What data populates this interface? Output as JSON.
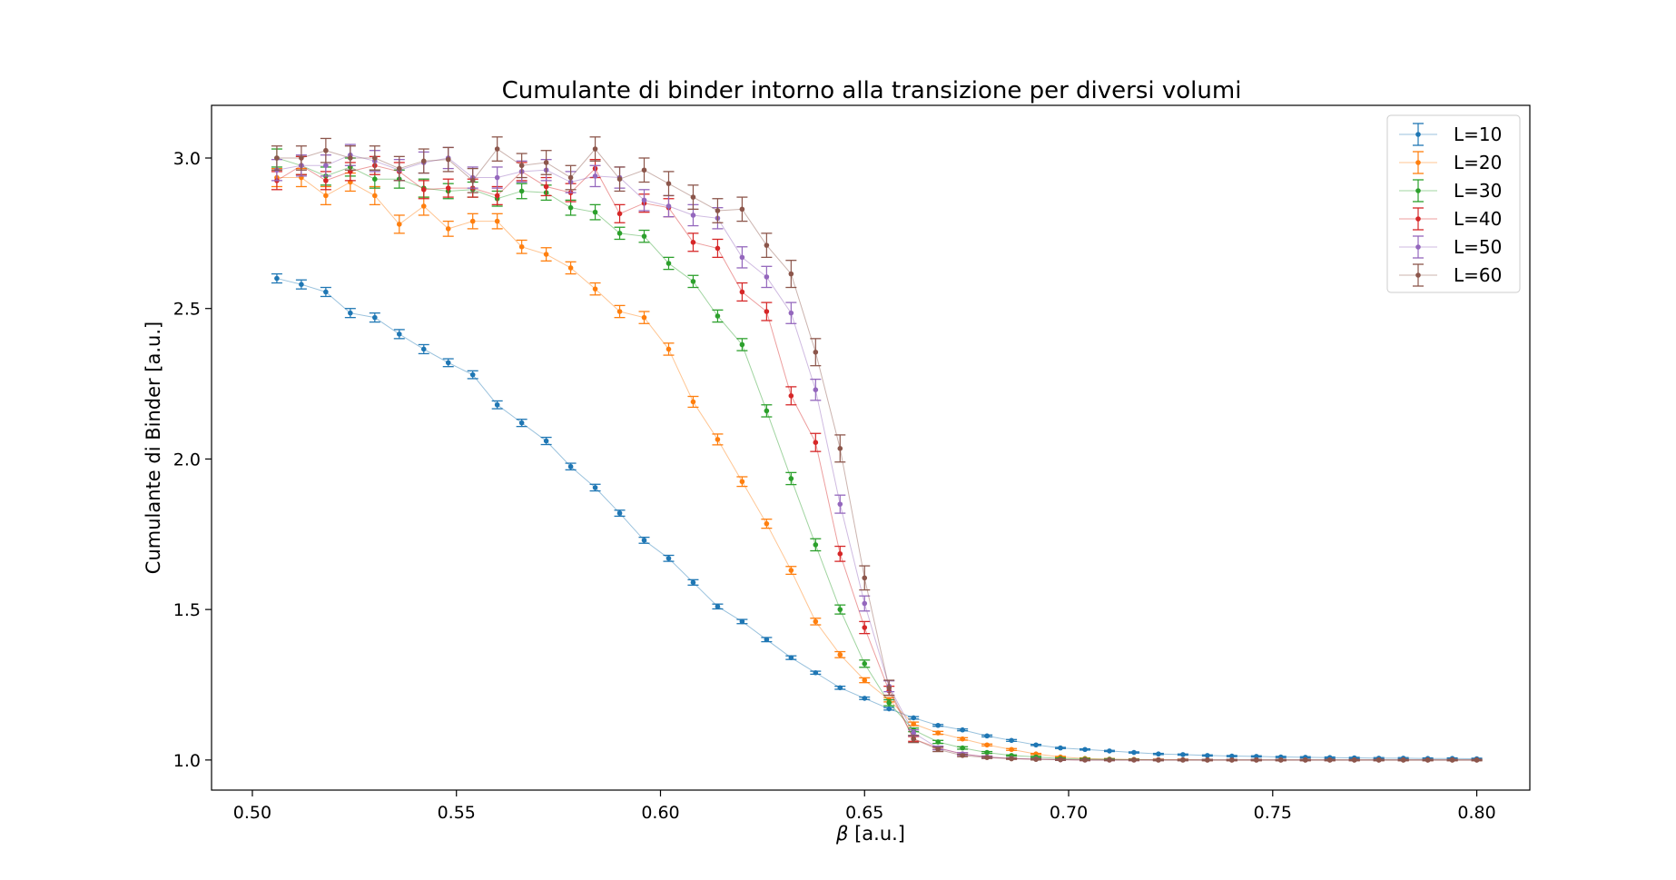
{
  "chart_data": {
    "type": "line",
    "title": "Cumulante di binder intorno alla transizione per diversi volumi",
    "xlabel_symbol": "β",
    "xlabel_unit": " [a.u.]",
    "ylabel": "Cumulante di Binder [a.u.]",
    "xlim": [
      0.49,
      0.813
    ],
    "ylim": [
      0.9,
      3.175
    ],
    "xticks": [
      0.5,
      0.55,
      0.6,
      0.65,
      0.7,
      0.75,
      0.8
    ],
    "xtick_labels": [
      "0.50",
      "0.55",
      "0.60",
      "0.65",
      "0.70",
      "0.75",
      "0.80"
    ],
    "yticks": [
      1.0,
      1.5,
      2.0,
      2.5,
      3.0
    ],
    "ytick_labels": [
      "1.0",
      "1.5",
      "2.0",
      "2.5",
      "3.0"
    ],
    "x": [
      0.506,
      0.512,
      0.518,
      0.524,
      0.53,
      0.536,
      0.542,
      0.548,
      0.554,
      0.56,
      0.566,
      0.572,
      0.578,
      0.584,
      0.59,
      0.596,
      0.602,
      0.608,
      0.614,
      0.62,
      0.626,
      0.632,
      0.638,
      0.644,
      0.65,
      0.656,
      0.662,
      0.668,
      0.674,
      0.68,
      0.686,
      0.692,
      0.698,
      0.704,
      0.71,
      0.716,
      0.722,
      0.728,
      0.734,
      0.74,
      0.746,
      0.752,
      0.758,
      0.764,
      0.77,
      0.776,
      0.782,
      0.788,
      0.794,
      0.8
    ],
    "legend_position": "top-right",
    "series": [
      {
        "name": "L=10",
        "color": "#1f77b4",
        "values": [
          2.6,
          2.58,
          2.555,
          2.485,
          2.47,
          2.415,
          2.365,
          2.32,
          2.28,
          2.18,
          2.12,
          2.06,
          1.975,
          1.905,
          1.82,
          1.73,
          1.67,
          1.59,
          1.51,
          1.46,
          1.4,
          1.34,
          1.29,
          1.24,
          1.205,
          1.17,
          1.14,
          1.115,
          1.1,
          1.08,
          1.065,
          1.05,
          1.04,
          1.035,
          1.03,
          1.025,
          1.02,
          1.018,
          1.015,
          1.013,
          1.012,
          1.01,
          1.009,
          1.008,
          1.007,
          1.006,
          1.006,
          1.005,
          1.005,
          1.004
        ],
        "errors": [
          0.015,
          0.015,
          0.015,
          0.015,
          0.015,
          0.015,
          0.015,
          0.013,
          0.013,
          0.013,
          0.012,
          0.012,
          0.011,
          0.011,
          0.01,
          0.01,
          0.01,
          0.009,
          0.008,
          0.007,
          0.007,
          0.006,
          0.005,
          0.005,
          0.004,
          0.004,
          0.004,
          0.003,
          0.003,
          0.003,
          0.003,
          0.002,
          0.002,
          0.002,
          0.002,
          0.002,
          0.002,
          0.002,
          0.002,
          0.002,
          0.002,
          0.002,
          0.002,
          0.002,
          0.002,
          0.002,
          0.002,
          0.002,
          0.002,
          0.002
        ]
      },
      {
        "name": "L=20",
        "color": "#ff7f0e",
        "values": [
          2.935,
          2.935,
          2.875,
          2.92,
          2.875,
          2.78,
          2.84,
          2.765,
          2.79,
          2.79,
          2.705,
          2.68,
          2.635,
          2.565,
          2.49,
          2.47,
          2.365,
          2.19,
          2.065,
          1.925,
          1.785,
          1.63,
          1.46,
          1.35,
          1.265,
          1.2,
          1.12,
          1.09,
          1.07,
          1.05,
          1.035,
          1.02,
          1.01,
          1.005,
          1.003,
          1.002,
          1.001,
          1.001,
          1.0,
          1.0,
          1.0,
          1.0,
          1.0,
          1.0,
          1.0,
          1.0,
          1.0,
          1.0,
          1.0,
          1.0
        ],
        "errors": [
          0.03,
          0.03,
          0.03,
          0.03,
          0.03,
          0.03,
          0.03,
          0.025,
          0.025,
          0.025,
          0.022,
          0.022,
          0.02,
          0.02,
          0.02,
          0.02,
          0.02,
          0.018,
          0.018,
          0.016,
          0.015,
          0.013,
          0.011,
          0.01,
          0.008,
          0.007,
          0.006,
          0.005,
          0.004,
          0.003,
          0.003,
          0.002,
          0.002,
          0.002,
          0.002,
          0.002,
          0.002,
          0.002,
          0.002,
          0.002,
          0.002,
          0.002,
          0.002,
          0.002,
          0.002,
          0.002,
          0.002,
          0.002,
          0.002,
          0.002
        ]
      },
      {
        "name": "L=30",
        "color": "#2ca02c",
        "values": [
          3.0,
          2.975,
          2.94,
          2.97,
          2.93,
          2.93,
          2.9,
          2.89,
          2.895,
          2.865,
          2.89,
          2.885,
          2.835,
          2.82,
          2.75,
          2.74,
          2.65,
          2.59,
          2.475,
          2.38,
          2.16,
          1.935,
          1.715,
          1.5,
          1.32,
          1.19,
          1.1,
          1.06,
          1.04,
          1.025,
          1.015,
          1.01,
          1.005,
          1.003,
          1.002,
          1.001,
          1.0,
          1.0,
          1.0,
          1.0,
          1.0,
          1.0,
          1.0,
          1.0,
          1.0,
          1.0,
          1.0,
          1.0,
          1.0,
          1.0
        ],
        "errors": [
          0.03,
          0.03,
          0.03,
          0.03,
          0.03,
          0.03,
          0.03,
          0.025,
          0.025,
          0.025,
          0.025,
          0.025,
          0.025,
          0.025,
          0.02,
          0.02,
          0.02,
          0.02,
          0.02,
          0.02,
          0.02,
          0.02,
          0.02,
          0.015,
          0.012,
          0.01,
          0.006,
          0.005,
          0.004,
          0.003,
          0.002,
          0.002,
          0.002,
          0.002,
          0.002,
          0.002,
          0.002,
          0.002,
          0.002,
          0.002,
          0.002,
          0.002,
          0.002,
          0.002,
          0.002,
          0.002,
          0.002,
          0.002,
          0.002,
          0.002
        ]
      },
      {
        "name": "L=40",
        "color": "#d62728",
        "values": [
          2.925,
          2.975,
          2.925,
          2.955,
          2.975,
          2.955,
          2.895,
          2.9,
          2.9,
          2.875,
          2.955,
          2.905,
          2.885,
          2.965,
          2.815,
          2.85,
          2.835,
          2.72,
          2.7,
          2.555,
          2.49,
          2.21,
          2.055,
          1.685,
          1.44,
          1.23,
          1.07,
          1.04,
          1.02,
          1.01,
          1.005,
          1.003,
          1.001,
          1.0,
          1.0,
          1.0,
          1.0,
          1.0,
          1.0,
          1.0,
          1.0,
          1.0,
          1.0,
          1.0,
          1.0,
          1.0,
          1.0,
          1.0,
          1.0,
          1.0
        ],
        "errors": [
          0.03,
          0.03,
          0.03,
          0.03,
          0.03,
          0.03,
          0.03,
          0.03,
          0.03,
          0.03,
          0.03,
          0.03,
          0.03,
          0.03,
          0.03,
          0.03,
          0.03,
          0.03,
          0.03,
          0.03,
          0.03,
          0.03,
          0.03,
          0.025,
          0.02,
          0.015,
          0.008,
          0.005,
          0.004,
          0.003,
          0.002,
          0.002,
          0.002,
          0.002,
          0.002,
          0.002,
          0.002,
          0.002,
          0.002,
          0.002,
          0.002,
          0.002,
          0.002,
          0.002,
          0.002,
          0.002,
          0.002,
          0.002,
          0.002,
          0.002
        ]
      },
      {
        "name": "L=50",
        "color": "#9467bd",
        "values": [
          2.96,
          2.975,
          2.975,
          3.01,
          2.99,
          2.96,
          2.985,
          3.0,
          2.935,
          2.935,
          2.955,
          2.96,
          2.92,
          2.94,
          2.935,
          2.86,
          2.84,
          2.81,
          2.8,
          2.67,
          2.605,
          2.485,
          2.23,
          1.85,
          1.52,
          1.245,
          1.09,
          1.04,
          1.02,
          1.01,
          1.005,
          1.003,
          1.001,
          1.0,
          1.0,
          1.0,
          1.0,
          1.0,
          1.0,
          1.0,
          1.0,
          1.0,
          1.0,
          1.0,
          1.0,
          1.0,
          1.0,
          1.0,
          1.0,
          1.0
        ],
        "errors": [
          0.035,
          0.035,
          0.035,
          0.035,
          0.035,
          0.035,
          0.035,
          0.035,
          0.035,
          0.035,
          0.035,
          0.035,
          0.035,
          0.035,
          0.035,
          0.035,
          0.035,
          0.035,
          0.035,
          0.035,
          0.035,
          0.035,
          0.035,
          0.03,
          0.025,
          0.018,
          0.01,
          0.006,
          0.004,
          0.003,
          0.002,
          0.002,
          0.002,
          0.002,
          0.002,
          0.002,
          0.002,
          0.002,
          0.002,
          0.002,
          0.002,
          0.002,
          0.002,
          0.002,
          0.002,
          0.002,
          0.002,
          0.002,
          0.002,
          0.002
        ]
      },
      {
        "name": "L=60",
        "color": "#8c564b",
        "values": [
          3.0,
          3.0,
          3.025,
          3.0,
          3.0,
          2.965,
          2.99,
          2.995,
          2.925,
          3.03,
          2.975,
          2.985,
          2.935,
          3.03,
          2.93,
          2.96,
          2.915,
          2.87,
          2.825,
          2.83,
          2.71,
          2.615,
          2.355,
          2.035,
          1.605,
          1.24,
          1.07,
          1.035,
          1.015,
          1.008,
          1.004,
          1.002,
          1.001,
          1.0,
          1.0,
          1.0,
          1.0,
          1.0,
          1.0,
          1.0,
          1.0,
          1.0,
          1.0,
          1.0,
          1.0,
          1.0,
          1.0,
          1.0,
          1.0,
          1.0
        ],
        "errors": [
          0.04,
          0.04,
          0.04,
          0.04,
          0.04,
          0.04,
          0.04,
          0.04,
          0.04,
          0.04,
          0.04,
          0.04,
          0.04,
          0.04,
          0.04,
          0.04,
          0.04,
          0.04,
          0.04,
          0.04,
          0.04,
          0.045,
          0.045,
          0.045,
          0.04,
          0.025,
          0.012,
          0.007,
          0.004,
          0.003,
          0.002,
          0.002,
          0.002,
          0.002,
          0.002,
          0.002,
          0.002,
          0.002,
          0.002,
          0.002,
          0.002,
          0.002,
          0.002,
          0.002,
          0.002,
          0.002,
          0.002,
          0.002,
          0.002,
          0.002
        ]
      }
    ]
  }
}
